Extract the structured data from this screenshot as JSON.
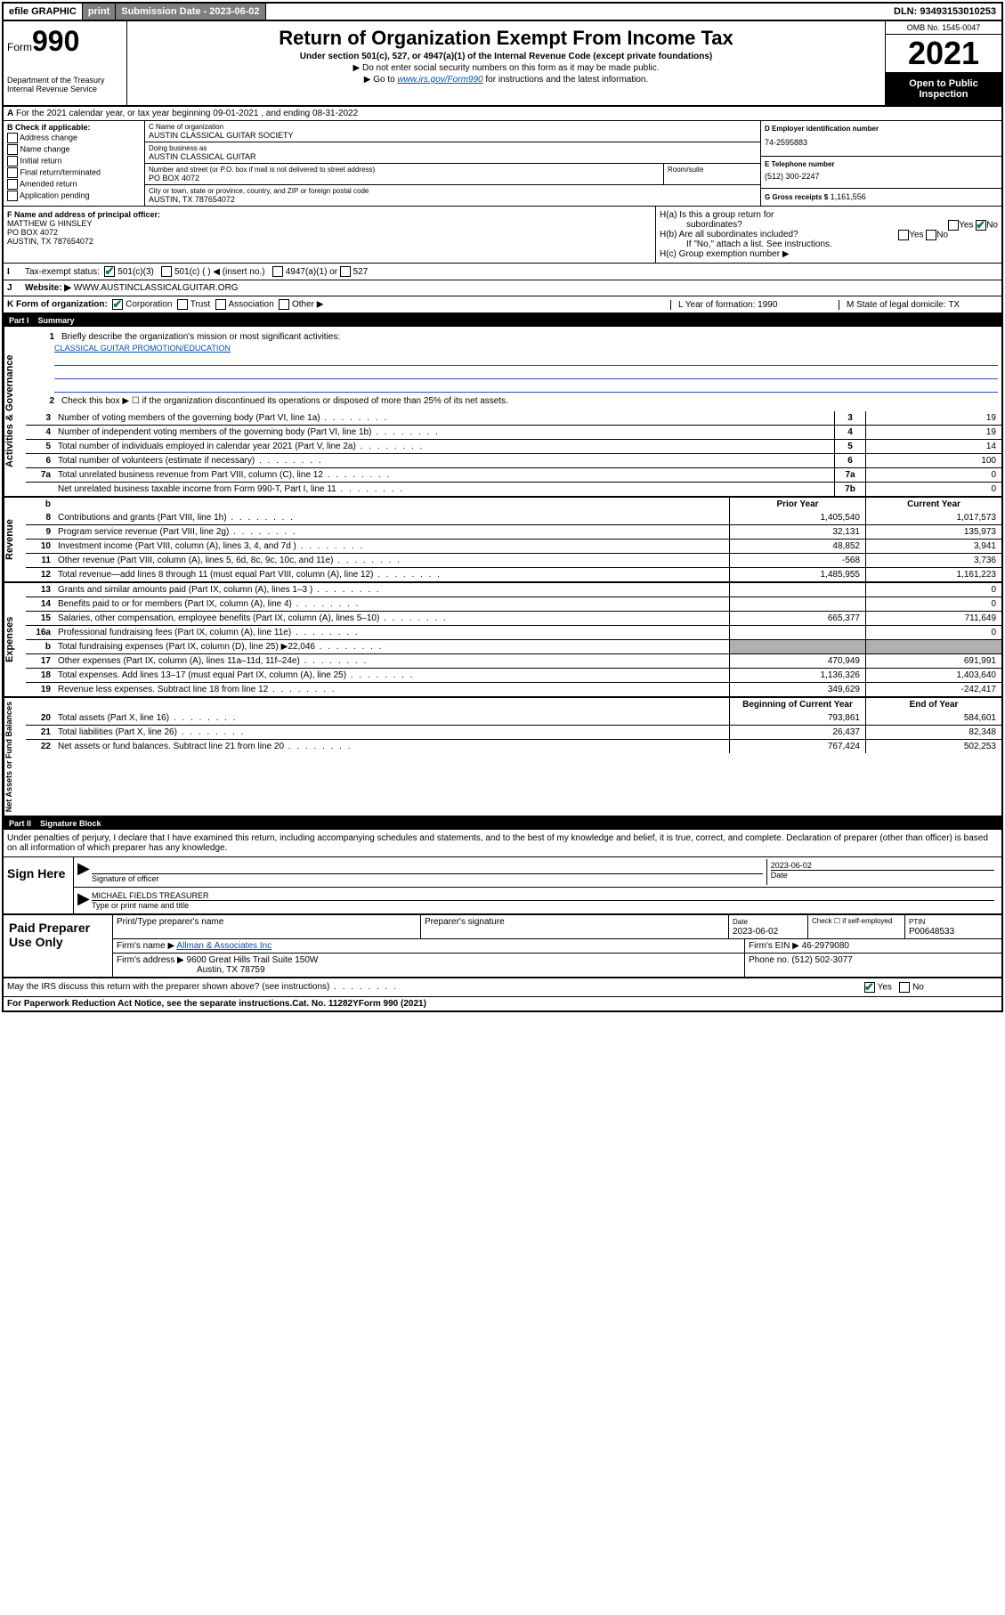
{
  "topbar": {
    "efile_label": "efile GRAPHIC",
    "print_label": "print",
    "submission_label": "Submission Date - 2023-06-02",
    "dln_label": "DLN: 93493153010253"
  },
  "header": {
    "form_prefix": "Form",
    "form_number": "990",
    "dept": "Department of the Treasury\nInternal Revenue Service",
    "title": "Return of Organization Exempt From Income Tax",
    "subtitle": "Under section 501(c), 527, or 4947(a)(1) of the Internal Revenue Code (except private foundations)",
    "note1": "▶ Do not enter social security numbers on this form as it may be made public.",
    "note2_prefix": "▶ Go to ",
    "note2_link": "www.irs.gov/Form990",
    "note2_suffix": " for instructions and the latest information.",
    "omb": "OMB No. 1545-0047",
    "year": "2021",
    "open_public": "Open to Public Inspection"
  },
  "line_a": "For the 2021 calendar year, or tax year beginning 09-01-2021    , and ending 08-31-2022",
  "section_b": {
    "heading": "B Check if applicable:",
    "items": [
      "Address change",
      "Name change",
      "Initial return",
      "Final return/terminated",
      "Amended return",
      "Application pending"
    ]
  },
  "section_c": {
    "name_label": "C Name of organization",
    "name": "AUSTIN CLASSICAL GUITAR SOCIETY",
    "dba_label": "Doing business as",
    "dba": "AUSTIN CLASSICAL GUITAR",
    "street_label": "Number and street (or P.O. box if mail is not delivered to street address)",
    "room_label": "Room/suite",
    "street": "PO BOX 4072",
    "city_label": "City or town, state or province, country, and ZIP or foreign postal code",
    "city": "AUSTIN, TX  787654072"
  },
  "section_de": {
    "d_label": "D Employer identification number",
    "d_value": "74-2595883",
    "e_label": "E Telephone number",
    "e_value": "(512) 300-2247",
    "g_label": "G Gross receipts $",
    "g_value": "1,161,556"
  },
  "section_f": {
    "label": "F Name and address of principal officer:",
    "name": "MATTHEW G HINSLEY",
    "addr1": "PO BOX 4072",
    "addr2": "AUSTIN, TX  787654072"
  },
  "section_h": {
    "ha_label": "H(a)  Is this a group return for",
    "ha_sub": "subordinates?",
    "hb_label": "H(b)  Are all subordinates included?",
    "hb_note": "If \"No,\" attach a list. See instructions.",
    "hc_label": "H(c)  Group exemption number ▶",
    "yes": "Yes",
    "no": "No"
  },
  "section_i": {
    "label": "Tax-exempt status:",
    "opt1": "501(c)(3)",
    "opt2": "501(c) (  ) ◀ (insert no.)",
    "opt3": "4947(a)(1) or",
    "opt4": "527"
  },
  "section_j": {
    "label": "Website: ▶",
    "value": "WWW.AUSTINCLASSICALGUITAR.ORG"
  },
  "section_k": {
    "label": "K Form of organization:",
    "opts": [
      "Corporation",
      "Trust",
      "Association",
      "Other ▶"
    ],
    "l_label": "L Year of formation: 1990",
    "m_label": "M State of legal domicile: TX"
  },
  "part1": {
    "label": "Part I",
    "title": "Summary"
  },
  "gov": {
    "vlabel": "Activities & Governance",
    "line1_label": "Briefly describe the organization's mission or most significant activities:",
    "line1_value": "CLASSICAL GUITAR PROMOTION/EDUCATION",
    "line2": "Check this box ▶ ☐  if the organization discontinued its operations or disposed of more than 25% of its net assets.",
    "rows": [
      {
        "n": "3",
        "desc": "Number of voting members of the governing body (Part VI, line 1a)",
        "cell": "3",
        "val": "19"
      },
      {
        "n": "4",
        "desc": "Number of independent voting members of the governing body (Part VI, line 1b)",
        "cell": "4",
        "val": "19"
      },
      {
        "n": "5",
        "desc": "Total number of individuals employed in calendar year 2021 (Part V, line 2a)",
        "cell": "5",
        "val": "14"
      },
      {
        "n": "6",
        "desc": "Total number of volunteers (estimate if necessary)",
        "cell": "6",
        "val": "100"
      },
      {
        "n": "7a",
        "desc": "Total unrelated business revenue from Part VIII, column (C), line 12",
        "cell": "7a",
        "val": "0"
      },
      {
        "n": "",
        "desc": "Net unrelated business taxable income from Form 990-T, Part I, line 11",
        "cell": "7b",
        "val": "0"
      }
    ]
  },
  "finheader": {
    "b": "b",
    "prior": "Prior Year",
    "current": "Current Year"
  },
  "rev": {
    "vlabel": "Revenue",
    "rows": [
      {
        "n": "8",
        "desc": "Contributions and grants (Part VIII, line 1h)",
        "p": "1,405,540",
        "c": "1,017,573"
      },
      {
        "n": "9",
        "desc": "Program service revenue (Part VIII, line 2g)",
        "p": "32,131",
        "c": "135,973"
      },
      {
        "n": "10",
        "desc": "Investment income (Part VIII, column (A), lines 3, 4, and 7d )",
        "p": "48,852",
        "c": "3,941"
      },
      {
        "n": "11",
        "desc": "Other revenue (Part VIII, column (A), lines 5, 6d, 8c, 9c, 10c, and 11e)",
        "p": "-568",
        "c": "3,736"
      },
      {
        "n": "12",
        "desc": "Total revenue—add lines 8 through 11 (must equal Part VIII, column (A), line 12)",
        "p": "1,485,955",
        "c": "1,161,223"
      }
    ]
  },
  "exp": {
    "vlabel": "Expenses",
    "rows": [
      {
        "n": "13",
        "desc": "Grants and similar amounts paid (Part IX, column (A), lines 1–3 )",
        "p": "",
        "c": "0"
      },
      {
        "n": "14",
        "desc": "Benefits paid to or for members (Part IX, column (A), line 4)",
        "p": "",
        "c": "0"
      },
      {
        "n": "15",
        "desc": "Salaries, other compensation, employee benefits (Part IX, column (A), lines 5–10)",
        "p": "665,377",
        "c": "711,649"
      },
      {
        "n": "16a",
        "desc": "Professional fundraising fees (Part IX, column (A), line 11e)",
        "p": "",
        "c": "0"
      },
      {
        "n": "b",
        "desc": "Total fundraising expenses (Part IX, column (D), line 25) ▶22,046",
        "p": "shaded",
        "c": "shaded"
      },
      {
        "n": "17",
        "desc": "Other expenses (Part IX, column (A), lines 11a–11d, 11f–24e)",
        "p": "470,949",
        "c": "691,991"
      },
      {
        "n": "18",
        "desc": "Total expenses. Add lines 13–17 (must equal Part IX, column (A), line 25)",
        "p": "1,136,326",
        "c": "1,403,640"
      },
      {
        "n": "19",
        "desc": "Revenue less expenses. Subtract line 18 from line 12",
        "p": "349,629",
        "c": "-242,417"
      }
    ]
  },
  "net": {
    "vlabel": "Net Assets or Fund Balances",
    "header": {
      "prior": "Beginning of Current Year",
      "current": "End of Year"
    },
    "rows": [
      {
        "n": "20",
        "desc": "Total assets (Part X, line 16)",
        "p": "793,861",
        "c": "584,601"
      },
      {
        "n": "21",
        "desc": "Total liabilities (Part X, line 26)",
        "p": "26,437",
        "c": "82,348"
      },
      {
        "n": "22",
        "desc": "Net assets or fund balances. Subtract line 21 from line 20",
        "p": "767,424",
        "c": "502,253"
      }
    ]
  },
  "part2": {
    "label": "Part II",
    "title": "Signature Block"
  },
  "sig": {
    "note": "Under penalties of perjury, I declare that I have examined this return, including accompanying schedules and statements, and to the best of my knowledge and belief, it is true, correct, and complete. Declaration of preparer (other than officer) is based on all information of which preparer has any knowledge.",
    "sign_here": "Sign Here",
    "sig_officer": "Signature of officer",
    "date_label": "Date",
    "date_value": "2023-06-02",
    "name_title": "MICHAEL FIELDS TREASURER",
    "type_name": "Type or print name and title"
  },
  "prep": {
    "left": "Paid Preparer Use Only",
    "h1": "Print/Type preparer's name",
    "h2": "Preparer's signature",
    "h3_label": "Date",
    "h3_value": "2023-06-02",
    "h4_label": "Check ☐ if self-employed",
    "h5_label": "PTIN",
    "h5_value": "P00648533",
    "firm_name_label": "Firm's name    ▶",
    "firm_name": "Allman & Associates Inc",
    "firm_ein_label": "Firm's EIN ▶",
    "firm_ein": "46-2979080",
    "firm_addr_label": "Firm's address ▶",
    "firm_addr1": "9600 Great Hills Trail Suite 150W",
    "firm_addr2": "Austin, TX  78759",
    "phone_label": "Phone no.",
    "phone": "(512) 502-3077"
  },
  "bottom": {
    "discuss": "May the IRS discuss this return with the preparer shown above? (see instructions)",
    "yes": "Yes",
    "no": "No",
    "paperwork": "For Paperwork Reduction Act Notice, see the separate instructions.",
    "cat": "Cat. No. 11282Y",
    "form": "Form 990 (2021)"
  }
}
